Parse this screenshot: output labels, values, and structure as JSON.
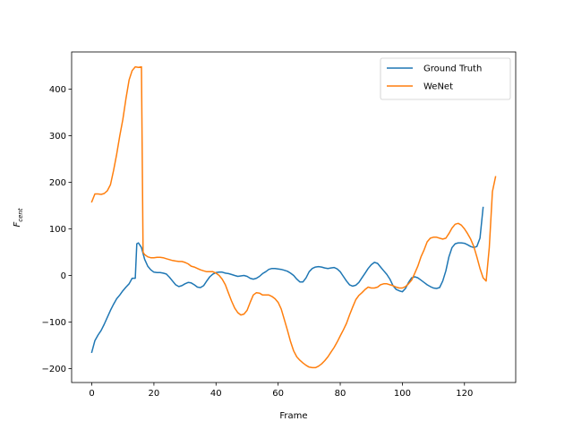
{
  "chart_data": {
    "type": "line",
    "xlabel": "Frame",
    "ylabel": "F",
    "ylabel_sub": "cent",
    "xlim": [
      -6.5,
      136.5
    ],
    "ylim": [
      -230,
      480
    ],
    "xticks": [
      0,
      20,
      40,
      60,
      80,
      100,
      120
    ],
    "yticks": [
      -200,
      -100,
      0,
      100,
      200,
      300,
      400
    ],
    "grid": false,
    "legend_position": "upper-right",
    "series": [
      {
        "name": "Ground Truth",
        "color": "#1f77b4",
        "points": [
          [
            0,
            -165
          ],
          [
            1,
            -140
          ],
          [
            2,
            -128
          ],
          [
            3,
            -118
          ],
          [
            4,
            -105
          ],
          [
            5,
            -90
          ],
          [
            6,
            -75
          ],
          [
            7,
            -62
          ],
          [
            8,
            -50
          ],
          [
            9,
            -42
          ],
          [
            10,
            -33
          ],
          [
            11,
            -25
          ],
          [
            12,
            -18
          ],
          [
            13,
            -6
          ],
          [
            14,
            -6
          ],
          [
            14.5,
            68
          ],
          [
            15,
            70
          ],
          [
            16,
            60
          ],
          [
            17,
            35
          ],
          [
            18,
            20
          ],
          [
            19,
            12
          ],
          [
            20,
            7
          ],
          [
            21,
            6
          ],
          [
            22,
            6
          ],
          [
            23,
            5
          ],
          [
            24,
            3
          ],
          [
            25,
            -4
          ],
          [
            26,
            -12
          ],
          [
            27,
            -20
          ],
          [
            28,
            -24
          ],
          [
            29,
            -22
          ],
          [
            30,
            -18
          ],
          [
            31,
            -15
          ],
          [
            32,
            -16
          ],
          [
            33,
            -20
          ],
          [
            34,
            -25
          ],
          [
            35,
            -26
          ],
          [
            36,
            -22
          ],
          [
            37,
            -12
          ],
          [
            38,
            -3
          ],
          [
            39,
            3
          ],
          [
            40,
            6
          ],
          [
            41,
            7
          ],
          [
            42,
            7
          ],
          [
            43,
            5
          ],
          [
            44,
            4
          ],
          [
            45,
            2
          ],
          [
            46,
            0
          ],
          [
            47,
            -2
          ],
          [
            48,
            -1
          ],
          [
            49,
            0
          ],
          [
            50,
            -2
          ],
          [
            51,
            -6
          ],
          [
            52,
            -8
          ],
          [
            53,
            -6
          ],
          [
            54,
            -2
          ],
          [
            55,
            4
          ],
          [
            56,
            8
          ],
          [
            57,
            13
          ],
          [
            58,
            15
          ],
          [
            59,
            15
          ],
          [
            60,
            14
          ],
          [
            61,
            13
          ],
          [
            62,
            11
          ],
          [
            63,
            9
          ],
          [
            64,
            5
          ],
          [
            65,
            0
          ],
          [
            66,
            -8
          ],
          [
            67,
            -14
          ],
          [
            68,
            -14
          ],
          [
            69,
            -5
          ],
          [
            70,
            8
          ],
          [
            71,
            15
          ],
          [
            72,
            18
          ],
          [
            73,
            19
          ],
          [
            74,
            18
          ],
          [
            75,
            16
          ],
          [
            76,
            15
          ],
          [
            77,
            16
          ],
          [
            78,
            17
          ],
          [
            79,
            14
          ],
          [
            80,
            8
          ],
          [
            81,
            -2
          ],
          [
            82,
            -12
          ],
          [
            83,
            -20
          ],
          [
            84,
            -23
          ],
          [
            85,
            -21
          ],
          [
            86,
            -15
          ],
          [
            87,
            -5
          ],
          [
            88,
            5
          ],
          [
            89,
            15
          ],
          [
            90,
            23
          ],
          [
            91,
            28
          ],
          [
            92,
            26
          ],
          [
            93,
            18
          ],
          [
            94,
            10
          ],
          [
            95,
            2
          ],
          [
            96,
            -8
          ],
          [
            97,
            -22
          ],
          [
            98,
            -30
          ],
          [
            99,
            -33
          ],
          [
            100,
            -35
          ],
          [
            101,
            -28
          ],
          [
            102,
            -15
          ],
          [
            103,
            -5
          ],
          [
            104,
            -3
          ],
          [
            105,
            -5
          ],
          [
            106,
            -10
          ],
          [
            107,
            -15
          ],
          [
            108,
            -20
          ],
          [
            109,
            -24
          ],
          [
            110,
            -27
          ],
          [
            111,
            -28
          ],
          [
            112,
            -26
          ],
          [
            113,
            -12
          ],
          [
            114,
            10
          ],
          [
            115,
            40
          ],
          [
            116,
            60
          ],
          [
            117,
            68
          ],
          [
            118,
            70
          ],
          [
            119,
            70
          ],
          [
            120,
            69
          ],
          [
            121,
            66
          ],
          [
            122,
            62
          ],
          [
            123,
            60
          ],
          [
            124,
            62
          ],
          [
            125,
            80
          ],
          [
            126,
            146
          ]
        ]
      },
      {
        "name": "WeNet",
        "color": "#ff7f0e",
        "points": [
          [
            0,
            158
          ],
          [
            1,
            175
          ],
          [
            2,
            175
          ],
          [
            3,
            174
          ],
          [
            4,
            176
          ],
          [
            5,
            182
          ],
          [
            6,
            195
          ],
          [
            7,
            225
          ],
          [
            8,
            260
          ],
          [
            9,
            300
          ],
          [
            10,
            335
          ],
          [
            11,
            380
          ],
          [
            12,
            420
          ],
          [
            13,
            440
          ],
          [
            14,
            448
          ],
          [
            15,
            447
          ],
          [
            16,
            448
          ],
          [
            16.5,
            50
          ],
          [
            17,
            45
          ],
          [
            18,
            40
          ],
          [
            19,
            38
          ],
          [
            20,
            38
          ],
          [
            21,
            39
          ],
          [
            22,
            39
          ],
          [
            23,
            38
          ],
          [
            24,
            36
          ],
          [
            25,
            34
          ],
          [
            26,
            32
          ],
          [
            27,
            31
          ],
          [
            28,
            30
          ],
          [
            29,
            30
          ],
          [
            30,
            28
          ],
          [
            31,
            25
          ],
          [
            32,
            20
          ],
          [
            33,
            18
          ],
          [
            34,
            15
          ],
          [
            35,
            12
          ],
          [
            36,
            10
          ],
          [
            37,
            8
          ],
          [
            38,
            8
          ],
          [
            39,
            8
          ],
          [
            40,
            5
          ],
          [
            41,
            0
          ],
          [
            42,
            -8
          ],
          [
            43,
            -20
          ],
          [
            44,
            -38
          ],
          [
            45,
            -55
          ],
          [
            46,
            -70
          ],
          [
            47,
            -80
          ],
          [
            48,
            -85
          ],
          [
            49,
            -83
          ],
          [
            50,
            -75
          ],
          [
            51,
            -58
          ],
          [
            52,
            -42
          ],
          [
            53,
            -37
          ],
          [
            54,
            -38
          ],
          [
            55,
            -42
          ],
          [
            56,
            -42
          ],
          [
            57,
            -42
          ],
          [
            58,
            -45
          ],
          [
            59,
            -50
          ],
          [
            60,
            -58
          ],
          [
            61,
            -72
          ],
          [
            62,
            -95
          ],
          [
            63,
            -118
          ],
          [
            64,
            -142
          ],
          [
            65,
            -162
          ],
          [
            66,
            -175
          ],
          [
            67,
            -182
          ],
          [
            68,
            -188
          ],
          [
            69,
            -193
          ],
          [
            70,
            -197
          ],
          [
            71,
            -198
          ],
          [
            72,
            -198
          ],
          [
            73,
            -195
          ],
          [
            74,
            -190
          ],
          [
            75,
            -183
          ],
          [
            76,
            -175
          ],
          [
            77,
            -165
          ],
          [
            78,
            -155
          ],
          [
            79,
            -143
          ],
          [
            80,
            -130
          ],
          [
            81,
            -117
          ],
          [
            82,
            -103
          ],
          [
            83,
            -85
          ],
          [
            84,
            -68
          ],
          [
            85,
            -52
          ],
          [
            86,
            -43
          ],
          [
            87,
            -37
          ],
          [
            88,
            -30
          ],
          [
            89,
            -25
          ],
          [
            90,
            -27
          ],
          [
            91,
            -27
          ],
          [
            92,
            -25
          ],
          [
            93,
            -20
          ],
          [
            94,
            -18
          ],
          [
            95,
            -18
          ],
          [
            96,
            -20
          ],
          [
            97,
            -22
          ],
          [
            98,
            -25
          ],
          [
            99,
            -27
          ],
          [
            100,
            -27
          ],
          [
            101,
            -24
          ],
          [
            102,
            -18
          ],
          [
            103,
            -10
          ],
          [
            104,
            5
          ],
          [
            105,
            20
          ],
          [
            106,
            40
          ],
          [
            107,
            55
          ],
          [
            108,
            72
          ],
          [
            109,
            80
          ],
          [
            110,
            82
          ],
          [
            111,
            82
          ],
          [
            112,
            80
          ],
          [
            113,
            78
          ],
          [
            114,
            80
          ],
          [
            115,
            90
          ],
          [
            116,
            102
          ],
          [
            117,
            110
          ],
          [
            118,
            112
          ],
          [
            119,
            108
          ],
          [
            120,
            100
          ],
          [
            121,
            90
          ],
          [
            122,
            78
          ],
          [
            123,
            62
          ],
          [
            124,
            40
          ],
          [
            125,
            15
          ],
          [
            126,
            -5
          ],
          [
            127,
            -12
          ],
          [
            128,
            60
          ],
          [
            129,
            180
          ],
          [
            130,
            212
          ]
        ]
      }
    ]
  }
}
